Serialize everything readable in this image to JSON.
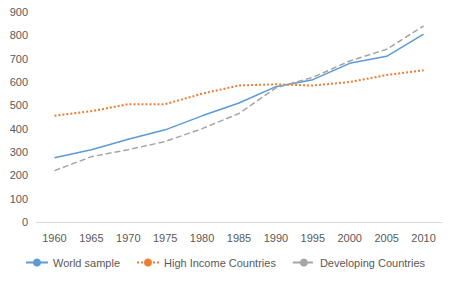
{
  "chart_data": {
    "type": "line",
    "categories": [
      "1960",
      "1965",
      "1970",
      "1975",
      "1980",
      "1985",
      "1990",
      "1995",
      "2000",
      "2005",
      "2010"
    ],
    "series": [
      {
        "name": "World sample",
        "color": "#5b9bd5",
        "line_style": "solid",
        "values": [
          275,
          310,
          355,
          395,
          455,
          510,
          580,
          610,
          680,
          710,
          805
        ]
      },
      {
        "name": "High Income Countries",
        "color": "#ed7d31",
        "line_style": "dotted",
        "values": [
          455,
          475,
          505,
          505,
          550,
          585,
          590,
          585,
          600,
          630,
          650
        ]
      },
      {
        "name": "Developing Countries",
        "color": "#a5a5a5",
        "line_style": "dashed",
        "values": [
          220,
          280,
          310,
          345,
          400,
          465,
          575,
          620,
          690,
          740,
          840
        ]
      }
    ],
    "ylim": [
      0,
      900
    ],
    "yticks": [
      0,
      100,
      200,
      300,
      400,
      500,
      600,
      700,
      800,
      900
    ],
    "grid": false,
    "legend": "bottom"
  }
}
